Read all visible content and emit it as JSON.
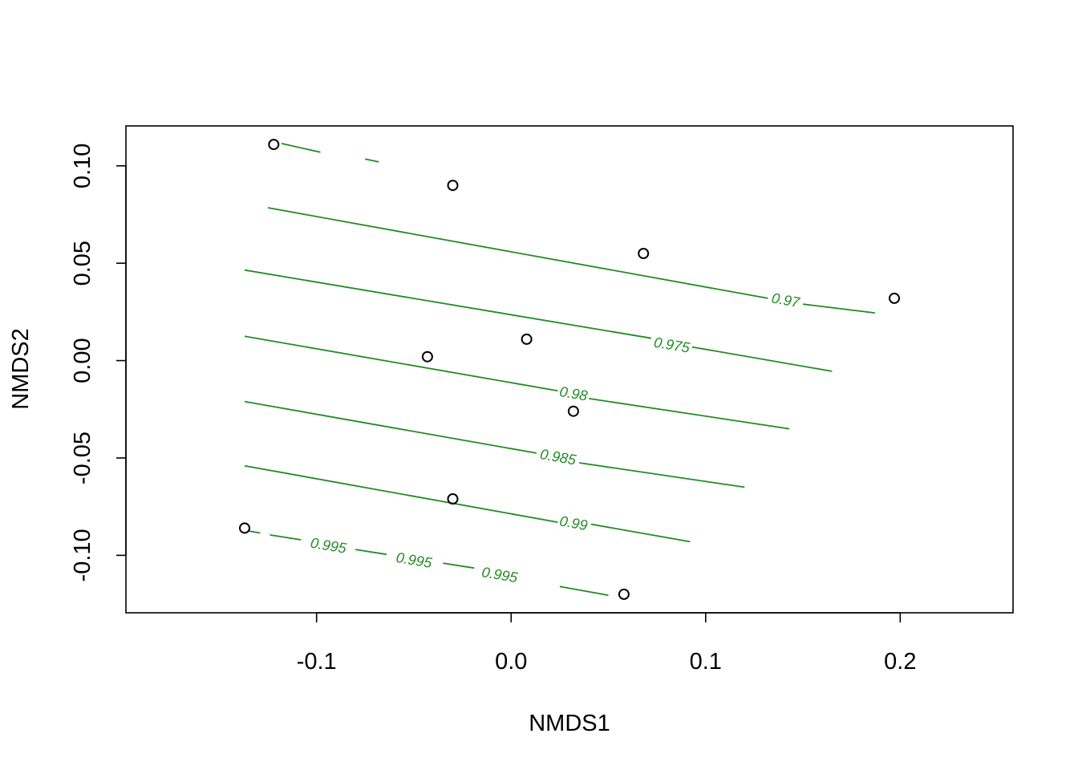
{
  "chart_data": {
    "type": "scatter",
    "title": "",
    "xlabel": "NMDS1",
    "ylabel": "NMDS2",
    "xlim": [
      -0.198,
      0.258
    ],
    "ylim": [
      -0.1295,
      0.1205
    ],
    "x_ticks": [
      -0.1,
      0.0,
      0.1,
      0.2
    ],
    "x_tick_labels": [
      "-0.1",
      "0.0",
      "0.1",
      "0.2"
    ],
    "y_ticks": [
      -0.1,
      -0.05,
      0.0,
      0.05,
      0.1
    ],
    "y_tick_labels": [
      "-0.10",
      "-0.05",
      "0.00",
      "0.05",
      "0.10"
    ],
    "grid": false,
    "points": [
      {
        "x": -0.122,
        "y": 0.111
      },
      {
        "x": -0.03,
        "y": 0.09
      },
      {
        "x": 0.068,
        "y": 0.055
      },
      {
        "x": 0.197,
        "y": 0.032
      },
      {
        "x": 0.008,
        "y": 0.011
      },
      {
        "x": -0.043,
        "y": 0.002
      },
      {
        "x": 0.032,
        "y": -0.026
      },
      {
        "x": -0.03,
        "y": -0.071
      },
      {
        "x": -0.137,
        "y": -0.086
      },
      {
        "x": 0.058,
        "y": -0.12
      }
    ],
    "point_color": "#000000",
    "contour_color": "#228B22",
    "contours": [
      {
        "level": "0.97",
        "segments": [
          [
            [
              -0.125,
              0.0785
            ],
            [
              0.132,
              0.032
            ]
          ],
          [
            [
              0.15,
              0.029
            ],
            [
              0.187,
              0.0245
            ]
          ]
        ],
        "labels": [
          {
            "text": "0.97",
            "x": 0.141,
            "y": 0.0305
          }
        ]
      },
      {
        "level": "0.975",
        "segments": [
          [
            [
              -0.137,
              0.0465
            ],
            [
              0.072,
              0.0115
            ]
          ],
          [
            [
              0.093,
              0.007
            ],
            [
              0.165,
              -0.0055
            ]
          ]
        ],
        "labels": [
          {
            "text": "0.975",
            "x": 0.0825,
            "y": 0.0075
          }
        ]
      },
      {
        "level": "0.98",
        "segments": [
          [
            [
              -0.137,
              0.0125
            ],
            [
              0.024,
              -0.0155
            ]
          ],
          [
            [
              0.04,
              -0.0195
            ],
            [
              0.143,
              -0.035
            ]
          ]
        ],
        "labels": [
          {
            "text": "0.98",
            "x": 0.032,
            "y": -0.0175
          }
        ]
      },
      {
        "level": "0.985",
        "segments": [
          [
            [
              -0.137,
              -0.021
            ],
            [
              0.013,
              -0.0475
            ]
          ],
          [
            [
              0.035,
              -0.0525
            ],
            [
              0.12,
              -0.065
            ]
          ]
        ],
        "labels": [
          {
            "text": "0.985",
            "x": 0.024,
            "y": -0.05
          }
        ]
      },
      {
        "level": "0.99",
        "segments": [
          [
            [
              -0.137,
              -0.054
            ],
            [
              0.024,
              -0.083
            ]
          ],
          [
            [
              0.041,
              -0.084
            ],
            [
              0.092,
              -0.093
            ]
          ]
        ],
        "labels": [
          {
            "text": "0.99",
            "x": 0.032,
            "y": -0.084
          }
        ]
      },
      {
        "level": "0.995",
        "segments": [
          [
            [
              -0.135,
              -0.0875
            ],
            [
              -0.129,
              -0.0885
            ]
          ],
          [
            [
              -0.124,
              -0.0895
            ],
            [
              -0.108,
              -0.092
            ]
          ],
          [
            [
              -0.08,
              -0.097
            ],
            [
              -0.064,
              -0.0995
            ]
          ],
          [
            [
              -0.035,
              -0.104
            ],
            [
              -0.019,
              -0.1065
            ]
          ],
          [
            [
              0.025,
              -0.116
            ],
            [
              0.05,
              -0.1205
            ]
          ]
        ],
        "labels": [
          {
            "text": "0.995",
            "x": -0.094,
            "y": -0.0955
          },
          {
            "text": "0.995",
            "x": -0.05,
            "y": -0.103
          },
          {
            "text": "0.995",
            "x": -0.006,
            "y": -0.1105
          }
        ]
      },
      {
        "level": "",
        "segments": [
          [
            [
              -0.118,
              0.1115
            ],
            [
              -0.098,
              0.107
            ]
          ],
          [
            [
              -0.075,
              0.1035
            ],
            [
              -0.068,
              0.102
            ]
          ]
        ],
        "labels": []
      }
    ]
  }
}
